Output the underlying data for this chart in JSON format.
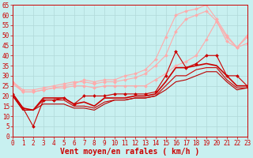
{
  "title": "",
  "xlabel": "Vent moyen/en rafales ( km/h )",
  "ylabel": "",
  "background_color": "#c8f0f0",
  "grid_color": "#b0d8d8",
  "axis_color": "#cc0000",
  "xlim": [
    0,
    23
  ],
  "ylim": [
    0,
    65
  ],
  "yticks": [
    0,
    5,
    10,
    15,
    20,
    25,
    30,
    35,
    40,
    45,
    50,
    55,
    60,
    65
  ],
  "xticks": [
    0,
    1,
    2,
    3,
    4,
    5,
    6,
    7,
    8,
    9,
    10,
    11,
    12,
    13,
    14,
    15,
    16,
    17,
    18,
    19,
    20,
    21,
    22,
    23
  ],
  "series": [
    {
      "x": [
        0,
        1,
        2,
        3,
        4,
        5,
        6,
        7,
        8,
        9,
        10,
        11,
        12,
        13,
        14,
        15,
        16,
        17,
        18,
        19,
        20,
        21,
        22,
        23
      ],
      "y": [
        21,
        14,
        5,
        18,
        18,
        19,
        16,
        20,
        20,
        20,
        21,
        21,
        21,
        21,
        22,
        30,
        42,
        34,
        36,
        40,
        40,
        30,
        30,
        25
      ],
      "color": "#cc0000",
      "marker": "D",
      "linewidth": 0.8,
      "markersize": 2.0,
      "zorder": 5
    },
    {
      "x": [
        0,
        1,
        2,
        3,
        4,
        5,
        6,
        7,
        8,
        9,
        10,
        11,
        12,
        13,
        14,
        15,
        16,
        17,
        18,
        19,
        20,
        21,
        22,
        23
      ],
      "y": [
        21,
        14,
        13,
        19,
        19,
        19,
        16,
        17,
        15,
        19,
        19,
        19,
        20,
        20,
        21,
        27,
        34,
        34,
        35,
        36,
        35,
        30,
        25,
        25
      ],
      "color": "#cc0000",
      "marker": null,
      "linewidth": 1.2,
      "markersize": 0,
      "zorder": 4
    },
    {
      "x": [
        0,
        1,
        2,
        3,
        4,
        5,
        6,
        7,
        8,
        9,
        10,
        11,
        12,
        13,
        14,
        15,
        16,
        17,
        18,
        19,
        20,
        21,
        22,
        23
      ],
      "y": [
        20,
        13,
        13,
        18,
        18,
        18,
        15,
        15,
        14,
        17,
        18,
        18,
        19,
        19,
        20,
        25,
        30,
        30,
        33,
        34,
        34,
        28,
        24,
        24
      ],
      "color": "#cc0000",
      "marker": null,
      "linewidth": 0.8,
      "markersize": 0,
      "zorder": 3
    },
    {
      "x": [
        0,
        1,
        2,
        3,
        4,
        5,
        6,
        7,
        8,
        9,
        10,
        11,
        12,
        13,
        14,
        15,
        16,
        17,
        18,
        19,
        20,
        21,
        22,
        23
      ],
      "y": [
        20,
        13,
        13,
        16,
        16,
        16,
        14,
        14,
        13,
        16,
        18,
        18,
        19,
        19,
        20,
        23,
        27,
        28,
        30,
        32,
        32,
        27,
        23,
        24
      ],
      "color": "#bb0000",
      "marker": null,
      "linewidth": 0.8,
      "markersize": 0,
      "zorder": 3
    },
    {
      "x": [
        0,
        1,
        2,
        3,
        4,
        5,
        6,
        7,
        8,
        9,
        10,
        11,
        12,
        13,
        14,
        15,
        16,
        17,
        18,
        19,
        20,
        21,
        22,
        23
      ],
      "y": [
        26,
        22,
        22,
        23,
        24,
        24,
        25,
        25,
        24,
        25,
        25,
        25,
        25,
        25,
        28,
        31,
        35,
        37,
        40,
        48,
        57,
        47,
        44,
        49
      ],
      "color": "#ffaaaa",
      "marker": "D",
      "linewidth": 0.8,
      "markersize": 2.0,
      "zorder": 2
    },
    {
      "x": [
        0,
        1,
        2,
        3,
        4,
        5,
        6,
        7,
        8,
        9,
        10,
        11,
        12,
        13,
        14,
        15,
        16,
        17,
        18,
        19,
        20,
        21,
        22,
        23
      ],
      "y": [
        27,
        23,
        23,
        24,
        25,
        26,
        27,
        27,
        26,
        27,
        27,
        28,
        29,
        31,
        35,
        40,
        52,
        58,
        60,
        62,
        57,
        49,
        44,
        50
      ],
      "color": "#ffaaaa",
      "marker": "D",
      "linewidth": 0.8,
      "markersize": 2.0,
      "zorder": 2
    },
    {
      "x": [
        0,
        1,
        2,
        3,
        4,
        5,
        6,
        7,
        8,
        9,
        10,
        11,
        12,
        13,
        14,
        15,
        16,
        17,
        18,
        19,
        20,
        21,
        22,
        23
      ],
      "y": [
        27,
        22,
        22,
        23,
        24,
        25,
        26,
        28,
        27,
        28,
        28,
        30,
        31,
        33,
        38,
        49,
        60,
        62,
        63,
        65,
        58,
        50,
        44,
        46
      ],
      "color": "#ffaaaa",
      "marker": "D",
      "linewidth": 0.8,
      "markersize": 2.0,
      "zorder": 2
    }
  ],
  "tick_color": "#cc0000",
  "tick_fontsize": 5.5,
  "xlabel_fontsize": 7,
  "xlabel_color": "#cc0000",
  "ytick_fontsize": 5.5,
  "ytick_color": "#cc0000"
}
